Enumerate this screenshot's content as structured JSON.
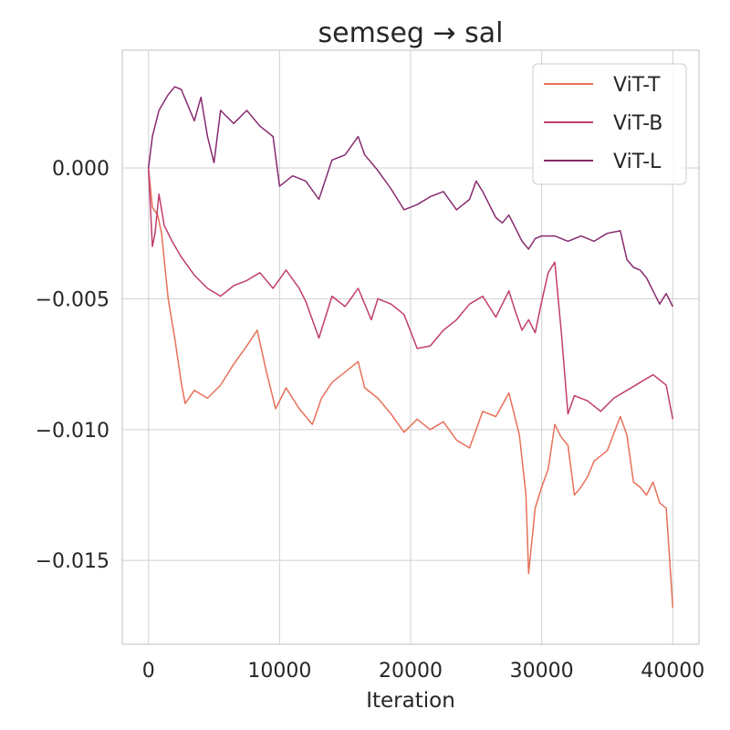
{
  "chart_data": {
    "type": "line",
    "title": "semseg → sal",
    "xlabel": "Iteration",
    "ylabel": "",
    "xlim": [
      -2000,
      42000
    ],
    "ylim": [
      -0.0182,
      0.0045
    ],
    "xticks": [
      0,
      10000,
      20000,
      30000,
      40000
    ],
    "xtick_labels": [
      "0",
      "10000",
      "20000",
      "30000",
      "40000"
    ],
    "yticks": [
      0.0,
      -0.005,
      -0.01,
      -0.015
    ],
    "ytick_labels": [
      "0.000",
      "−0.005",
      "−0.010",
      "−0.015"
    ],
    "grid": true,
    "legend_position": "top-right",
    "series": [
      {
        "name": "ViT-T",
        "color": "#e8705a",
        "x": [
          0,
          300,
          700,
          1000,
          1500,
          2000,
          2500,
          2800,
          3500,
          4500,
          5500,
          6500,
          7500,
          8300,
          9000,
          9700,
          10500,
          11500,
          12500,
          13200,
          14000,
          15000,
          16000,
          16500,
          17500,
          18500,
          19500,
          20500,
          21500,
          22500,
          23500,
          24500,
          25500,
          26500,
          27500,
          28300,
          28800,
          29000,
          29500,
          30000,
          30500,
          31000,
          31500,
          32000,
          32500,
          33000,
          33500,
          34000,
          35000,
          36000,
          36500,
          37000,
          37500,
          38000,
          38500,
          39000,
          39500,
          39700,
          40000
        ],
        "values": [
          0.0,
          -0.0015,
          -0.0018,
          -0.0025,
          -0.005,
          -0.0065,
          -0.0082,
          -0.009,
          -0.0085,
          -0.0088,
          -0.0083,
          -0.0075,
          -0.0068,
          -0.0062,
          -0.0078,
          -0.0092,
          -0.0084,
          -0.0092,
          -0.0098,
          -0.0088,
          -0.0082,
          -0.0078,
          -0.0074,
          -0.0084,
          -0.0088,
          -0.0094,
          -0.0101,
          -0.0096,
          -0.01,
          -0.0097,
          -0.0104,
          -0.0107,
          -0.0093,
          -0.0095,
          -0.0086,
          -0.0102,
          -0.0125,
          -0.0155,
          -0.013,
          -0.0122,
          -0.0115,
          -0.0098,
          -0.0103,
          -0.0106,
          -0.0125,
          -0.0122,
          -0.0118,
          -0.0112,
          -0.0108,
          -0.0095,
          -0.0102,
          -0.012,
          -0.0122,
          -0.0125,
          -0.012,
          -0.0128,
          -0.013,
          -0.0145,
          -0.0168
        ]
      },
      {
        "name": "ViT-B",
        "color": "#c13d6c",
        "x": [
          0,
          300,
          500,
          800,
          1200,
          1800,
          2500,
          3500,
          4500,
          5500,
          6500,
          7500,
          8500,
          9500,
          10500,
          11500,
          12000,
          13000,
          14000,
          15000,
          16000,
          17000,
          17500,
          18500,
          19500,
          20500,
          21500,
          22500,
          23500,
          24500,
          25500,
          26500,
          27500,
          28000,
          28500,
          29000,
          29500,
          30000,
          30500,
          31000,
          31500,
          32000,
          32500,
          33500,
          34500,
          35500,
          36500,
          37500,
          38500,
          39500,
          40000
        ],
        "values": [
          0.0,
          -0.003,
          -0.0025,
          -0.001,
          -0.0022,
          -0.0028,
          -0.0034,
          -0.0041,
          -0.0046,
          -0.0049,
          -0.0045,
          -0.0043,
          -0.004,
          -0.0046,
          -0.0039,
          -0.0046,
          -0.0051,
          -0.0065,
          -0.0049,
          -0.0053,
          -0.0046,
          -0.0058,
          -0.005,
          -0.0052,
          -0.0056,
          -0.0069,
          -0.0068,
          -0.0062,
          -0.0058,
          -0.0052,
          -0.0049,
          -0.0057,
          -0.0047,
          -0.0055,
          -0.0062,
          -0.0058,
          -0.0063,
          -0.0051,
          -0.004,
          -0.0036,
          -0.0063,
          -0.0094,
          -0.0087,
          -0.0089,
          -0.0093,
          -0.0088,
          -0.0085,
          -0.0082,
          -0.0079,
          -0.0083,
          -0.0096
        ]
      },
      {
        "name": "ViT-L",
        "color": "#862a6e",
        "x": [
          0,
          300,
          800,
          1500,
          2000,
          2500,
          3000,
          3500,
          4000,
          4500,
          5000,
          5500,
          6500,
          7500,
          8500,
          9500,
          10000,
          11000,
          12000,
          13000,
          14000,
          15000,
          16000,
          16500,
          17500,
          18500,
          19500,
          20500,
          21500,
          22500,
          23500,
          24500,
          25000,
          25500,
          26500,
          27000,
          27500,
          28000,
          28500,
          29000,
          29500,
          30000,
          31000,
          32000,
          33000,
          34000,
          35000,
          36000,
          36500,
          37000,
          37500,
          38000,
          38500,
          39000,
          39500,
          40000
        ],
        "values": [
          0.0,
          0.0012,
          0.0022,
          0.0028,
          0.0031,
          0.003,
          0.0024,
          0.0018,
          0.0027,
          0.0012,
          0.0002,
          0.0022,
          0.0017,
          0.0022,
          0.0016,
          0.0012,
          -0.0007,
          -0.0003,
          -0.0005,
          -0.0012,
          0.0003,
          0.0005,
          0.0012,
          0.0005,
          -0.0001,
          -0.0008,
          -0.0016,
          -0.0014,
          -0.0011,
          -0.0009,
          -0.0016,
          -0.0012,
          -0.0005,
          -0.0009,
          -0.0019,
          -0.0021,
          -0.0018,
          -0.0023,
          -0.0028,
          -0.0031,
          -0.0027,
          -0.0026,
          -0.0026,
          -0.0028,
          -0.0026,
          -0.0028,
          -0.0025,
          -0.0024,
          -0.0035,
          -0.0038,
          -0.0039,
          -0.0042,
          -0.0047,
          -0.0052,
          -0.0048,
          -0.0053
        ]
      }
    ]
  }
}
